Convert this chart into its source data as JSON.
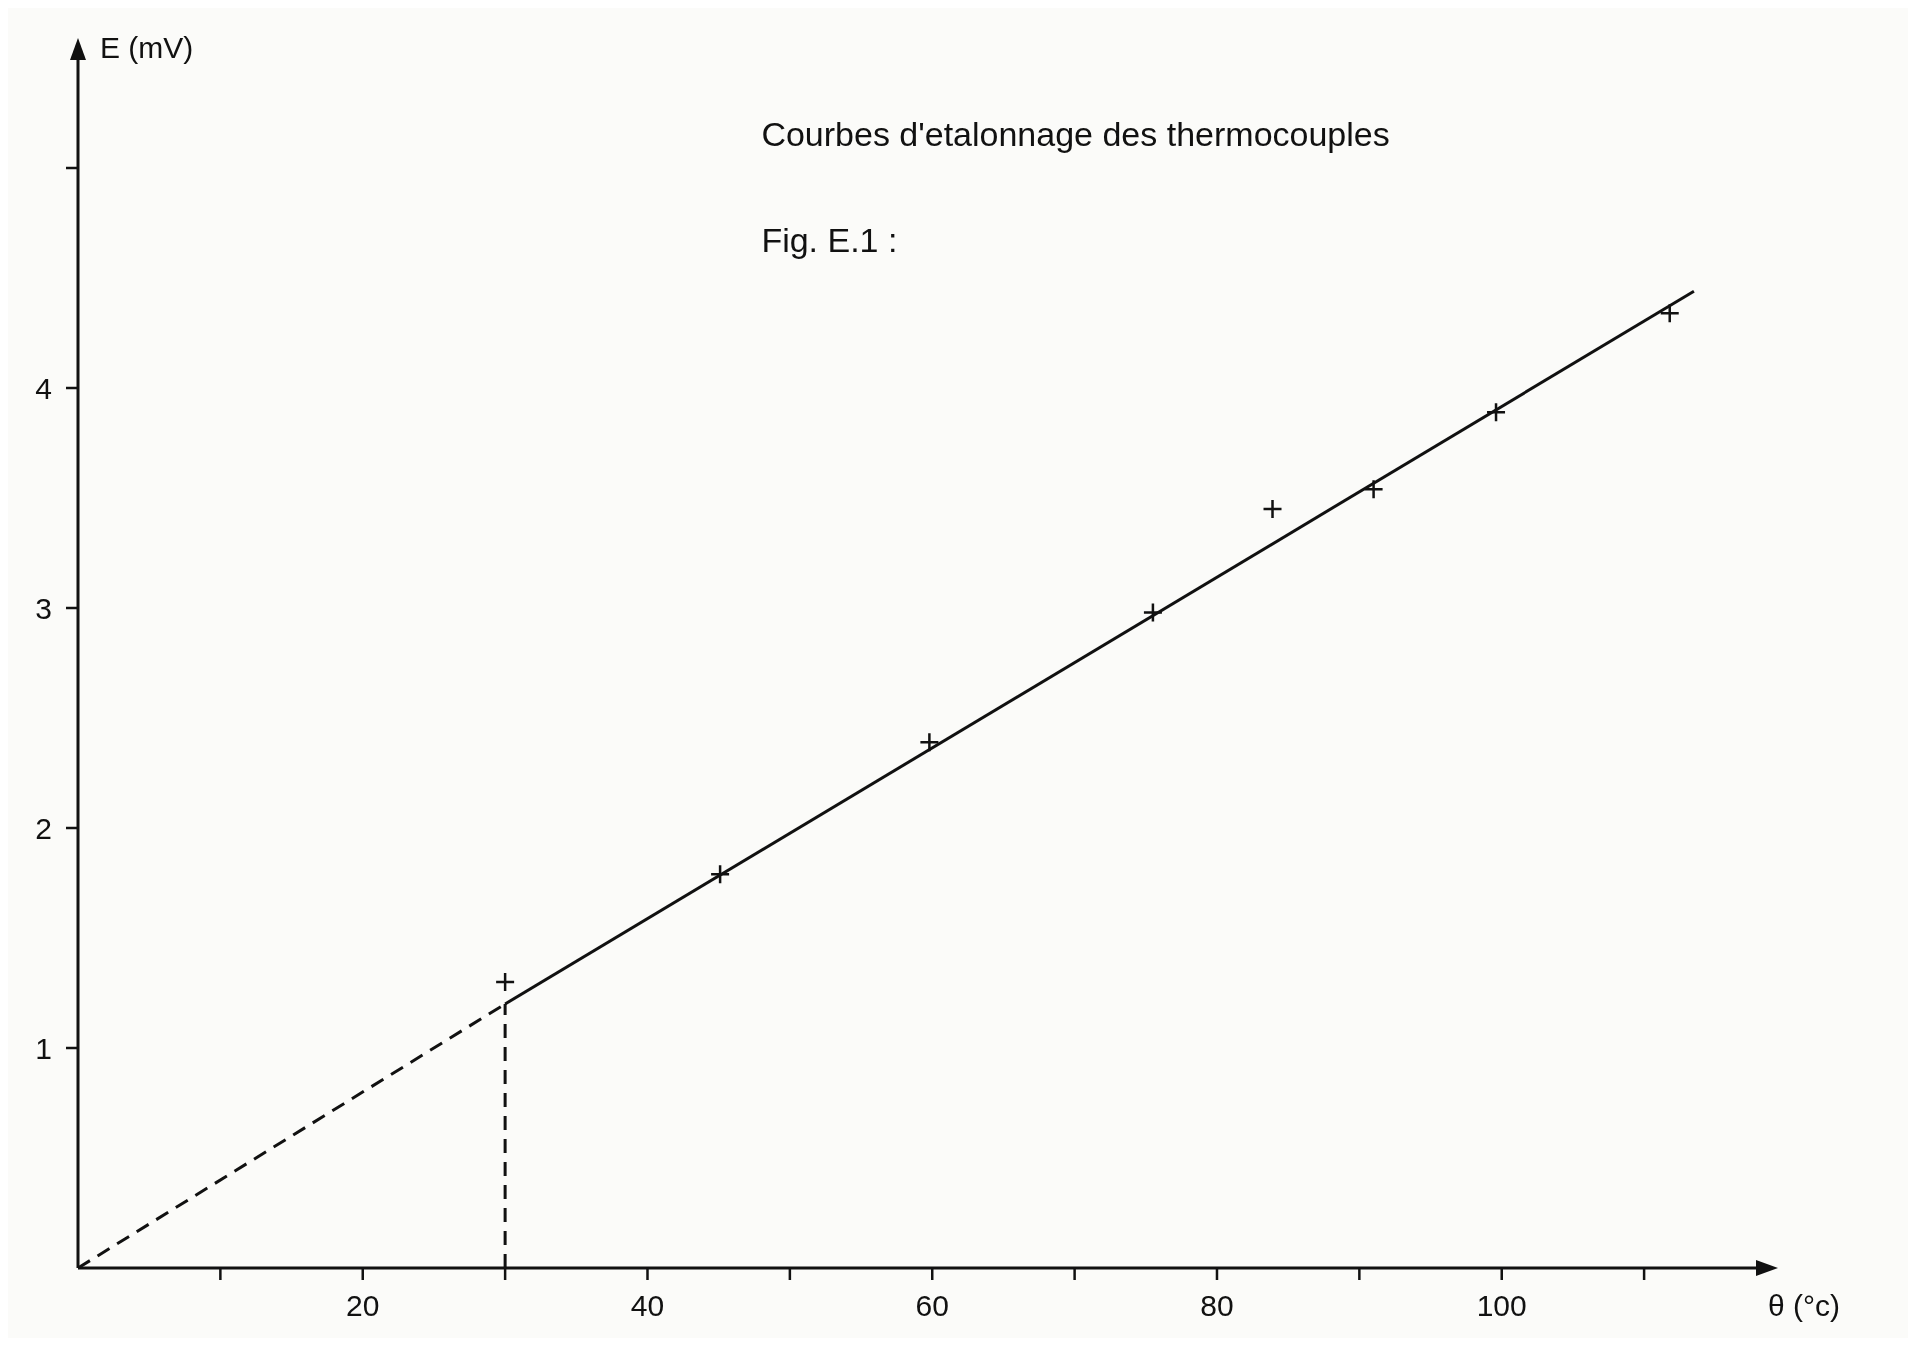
{
  "chart_data": {
    "type": "scatter",
    "title": "Courbes d'etalonnage des thermocouples",
    "subtitle": "Fig. E.1 :",
    "xlabel": "θ (°c)",
    "ylabel": "E (mV)",
    "xlim": [
      0,
      118
    ],
    "ylim": [
      0,
      5.5
    ],
    "xticks": [
      {
        "value": 10,
        "label": null
      },
      20,
      {
        "value": 30,
        "label": null
      },
      40,
      {
        "value": 50,
        "label": null
      },
      60,
      {
        "value": 70,
        "label": null
      },
      80,
      {
        "value": 90,
        "label": null
      },
      100,
      {
        "value": 110,
        "label": null
      }
    ],
    "yticks": [
      1,
      2,
      3,
      4,
      {
        "value": 5,
        "label": null
      }
    ],
    "series": [
      {
        "color": "#111111",
        "marker": "cross",
        "x": [
          30,
          45.1,
          59.8,
          75.5,
          83.9,
          91,
          99.6,
          111.8
        ],
        "values": [
          1.3,
          1.79,
          2.39,
          2.98,
          3.45,
          3.54,
          3.89,
          4.34
        ]
      },
      {
        "type": "line",
        "color": "#111111",
        "marker": "none",
        "line_style": "solid",
        "x": [
          30,
          113.5
        ],
        "values": [
          1.2,
          4.44
        ]
      },
      {
        "type": "line",
        "color": "#111111",
        "marker": "none",
        "line_style": "dashed",
        "x": [
          0,
          30
        ],
        "values": [
          0,
          1.2
        ]
      },
      {
        "type": "line",
        "color": "#111111",
        "marker": "none",
        "line_style": "dashed",
        "x": [
          30,
          30
        ],
        "values": [
          0,
          1.2
        ]
      }
    ]
  }
}
